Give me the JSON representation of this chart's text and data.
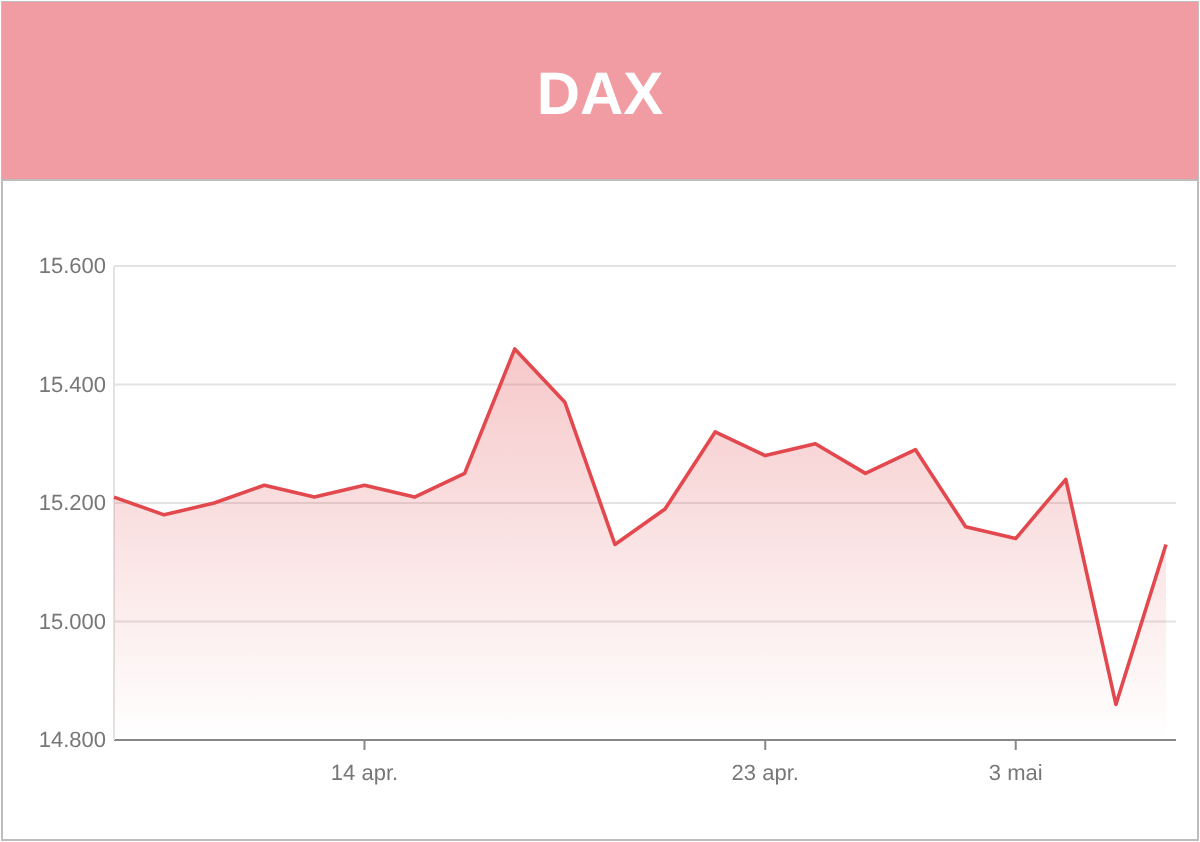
{
  "chart_data": {
    "type": "area",
    "title": "DAX",
    "categories": [
      null,
      null,
      null,
      null,
      null,
      "14 apr.",
      null,
      null,
      null,
      null,
      null,
      null,
      null,
      "23 apr.",
      null,
      null,
      null,
      null,
      "3 mai",
      null,
      null,
      null
    ],
    "series": [
      {
        "color": "#e2484d",
        "values": [
          15210,
          15180,
          15200,
          15230,
          15210,
          15230,
          15210,
          15250,
          15460,
          15370,
          15130,
          15190,
          15320,
          15280,
          15300,
          15250,
          15290,
          15160,
          15140,
          15240,
          14860,
          15130
        ]
      }
    ],
    "ylim": [
      14800,
      15600
    ],
    "yticks": [
      {
        "value": 14800,
        "label": "14.800"
      },
      {
        "value": 15000,
        "label": "15.000"
      },
      {
        "value": 15200,
        "label": "15.200"
      },
      {
        "value": 15400,
        "label": "15.400"
      },
      {
        "value": 15600,
        "label": "15.600"
      }
    ],
    "grid": "y"
  }
}
